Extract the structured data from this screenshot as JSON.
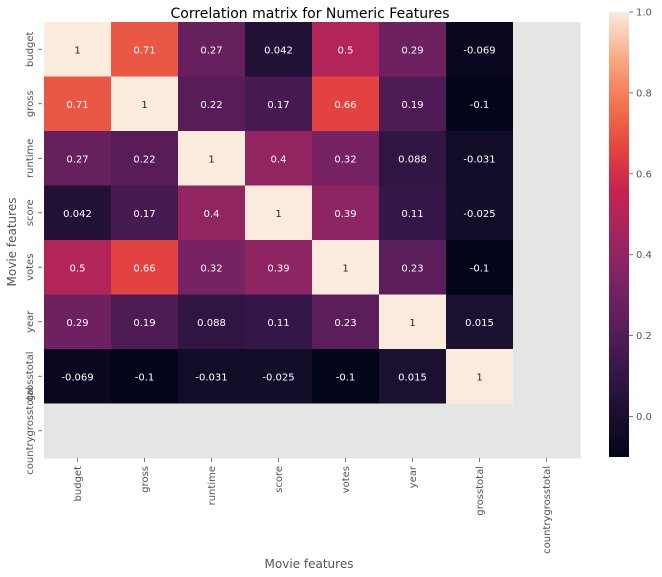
{
  "chart_data": {
    "type": "heatmap",
    "title": "Correlation matrix for Numeric Features",
    "xlabel": "Movie features",
    "ylabel": "Movie features",
    "categories": [
      "budget",
      "gross",
      "runtime",
      "score",
      "votes",
      "year",
      "grosstotal",
      "countrygrosstotal"
    ],
    "values": [
      [
        1,
        0.71,
        0.27,
        0.042,
        0.5,
        0.29,
        -0.069,
        null
      ],
      [
        0.71,
        1,
        0.22,
        0.17,
        0.66,
        0.19,
        -0.1,
        null
      ],
      [
        0.27,
        0.22,
        1,
        0.4,
        0.32,
        0.088,
        -0.031,
        null
      ],
      [
        0.042,
        0.17,
        0.4,
        1,
        0.39,
        0.11,
        -0.025,
        null
      ],
      [
        0.5,
        0.66,
        0.32,
        0.39,
        1,
        0.23,
        -0.1,
        null
      ],
      [
        0.29,
        0.19,
        0.088,
        0.11,
        0.23,
        1,
        0.015,
        null
      ],
      [
        -0.069,
        -0.1,
        -0.031,
        -0.025,
        -0.1,
        0.015,
        1,
        null
      ],
      [
        null,
        null,
        null,
        null,
        null,
        null,
        null,
        null
      ]
    ],
    "colorbar": {
      "ticks": [
        1.0,
        0.8,
        0.6,
        0.4,
        0.2,
        0.0
      ],
      "tick_labels": [
        "1.0",
        "0.8",
        "0.6",
        "0.4",
        "0.2",
        "0.0"
      ],
      "vmin": -0.1,
      "vmax": 1.0
    },
    "colormap": "rocket",
    "missing_color": "#e5e5e5"
  }
}
